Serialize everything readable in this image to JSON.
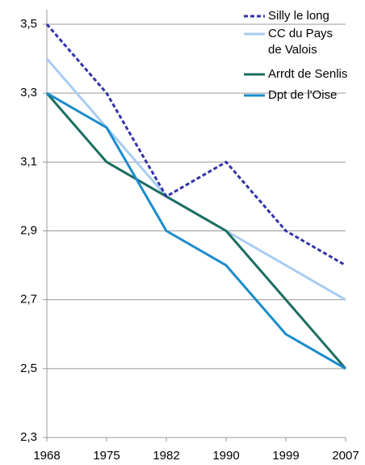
{
  "chart_data": {
    "type": "line",
    "categories": [
      "1968",
      "1975",
      "1982",
      "1990",
      "1999",
      "2007"
    ],
    "series": [
      {
        "name": "Silly le long",
        "color": "#3333aa",
        "dashed": true,
        "values": [
          3.5,
          3.3,
          3.0,
          3.1,
          2.9,
          2.8
        ]
      },
      {
        "name": "CC du Pays de Valois",
        "color": "#a8cdf2",
        "values": [
          3.4,
          3.2,
          3.0,
          2.9,
          2.8,
          2.7
        ]
      },
      {
        "name": "Arrdt de Senlis",
        "color": "#1b6e60",
        "values": [
          3.3,
          3.1,
          3.0,
          2.9,
          2.7,
          2.5
        ]
      },
      {
        "name": "Dpt de l'Oise",
        "color": "#1a8ccc",
        "values": [
          3.3,
          3.2,
          2.9,
          2.8,
          2.6,
          2.5
        ]
      }
    ],
    "ylim": [
      2.3,
      3.5
    ],
    "yticks": [
      {
        "value": 2.3,
        "label": "2,3"
      },
      {
        "value": 2.5,
        "label": "2,5"
      },
      {
        "value": 2.7,
        "label": "2,7"
      },
      {
        "value": 2.9,
        "label": "2,9"
      },
      {
        "value": 3.1,
        "label": "3,1"
      },
      {
        "value": 3.3,
        "label": "3,3"
      },
      {
        "value": 3.5,
        "label": "3,5"
      }
    ],
    "grid": true
  }
}
